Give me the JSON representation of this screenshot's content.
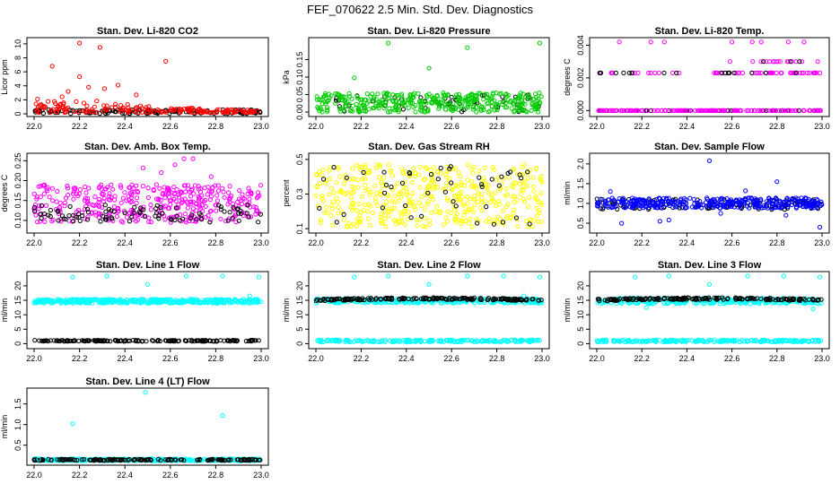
{
  "figure_title": "FEF_070622  2.5 Min. Std. Dev. Diagnostics",
  "colors": {
    "black": "#000000",
    "red": "#ff0000",
    "green": "#00cc00",
    "magenta": "#ff00ff",
    "yellow": "#ffff00",
    "blue": "#0000ff",
    "cyan": "#00ffff"
  },
  "chart_data": [
    {
      "type": "scatter",
      "title": "Stan. Dev. Li-820 CO2",
      "ylabel": "Licor ppm",
      "xlim": [
        22.0,
        23.0
      ],
      "xticks": [
        "22.0",
        "22.2",
        "22.4",
        "22.6",
        "22.8",
        "23.0"
      ],
      "ylim": [
        0,
        10.5
      ],
      "yticks": [
        {
          "v": 0,
          "label": "0"
        },
        {
          "v": 2,
          "label": "2"
        },
        {
          "v": 4,
          "label": "4"
        },
        {
          "v": 6,
          "label": "6"
        },
        {
          "v": 8,
          "label": "8"
        },
        {
          "v": 10,
          "label": "10"
        }
      ],
      "series": [
        {
          "name": "background",
          "color": "black",
          "gen": {
            "mode": "band",
            "n": 130,
            "lo": 0.0,
            "hi": 0.6
          }
        },
        {
          "name": "CO2 std dev",
          "color": "red",
          "gen": {
            "mode": "decay",
            "n": 180,
            "lo": 0.2,
            "hi": 3.2,
            "decay": 2.2
          }
        },
        {
          "name": "CO2 outliers",
          "color": "red",
          "points": [
            [
              22.08,
              6.8
            ],
            [
              22.2,
              10.1
            ],
            [
              22.29,
              9.5
            ],
            [
              22.58,
              7.5
            ],
            [
              22.2,
              5.3
            ],
            [
              22.37,
              4.1
            ],
            [
              22.24,
              3.8
            ],
            [
              22.31,
              3.6
            ],
            [
              22.15,
              3.2
            ],
            [
              22.45,
              2.7
            ]
          ]
        }
      ]
    },
    {
      "type": "scatter",
      "title": "Stan. Dev. Li-820 Pressure",
      "ylabel": "kPa",
      "xlim": [
        22.0,
        23.0
      ],
      "xticks": [
        "22.0",
        "22.2",
        "22.4",
        "22.6",
        "22.8",
        "23.0"
      ],
      "ylim": [
        -0.005,
        0.205
      ],
      "yticks": [
        {
          "v": 0.0,
          "label": "0.00"
        },
        {
          "v": 0.05,
          "label": "0.05"
        },
        {
          "v": 0.1,
          "label": "0.10"
        },
        {
          "v": 0.15,
          "label": "0.15"
        }
      ],
      "series": [
        {
          "name": "background",
          "color": "black",
          "gen": {
            "mode": "band",
            "n": 50,
            "lo": 0.0,
            "hi": 0.05
          }
        },
        {
          "name": "pressure std dev",
          "color": "green",
          "gen": {
            "mode": "band",
            "n": 380,
            "lo": 0.0,
            "hi": 0.055
          }
        },
        {
          "name": "pressure outliers",
          "color": "green",
          "points": [
            [
              22.32,
              0.197
            ],
            [
              22.99,
              0.197
            ],
            [
              22.67,
              0.184
            ],
            [
              22.5,
              0.125
            ],
            [
              22.17,
              0.098
            ]
          ]
        }
      ]
    },
    {
      "type": "scatter",
      "title": "Stan. Dev. Li-820 Temp.",
      "ylabel": "degrees C",
      "xlim": [
        22.0,
        23.0
      ],
      "xticks": [
        "22.0",
        "22.2",
        "22.4",
        "22.6",
        "22.8",
        "23.0"
      ],
      "ylim": [
        -0.0002,
        0.0043
      ],
      "yticks": [
        {
          "v": 0.0,
          "label": "0.000"
        },
        {
          "v": 0.002,
          "label": "0.002"
        },
        {
          "v": 0.004,
          "label": "0.004"
        }
      ],
      "series": [
        {
          "name": "background low",
          "color": "black",
          "gen": {
            "mode": "levels",
            "n": 40,
            "levels": [
              0.0
            ]
          }
        },
        {
          "name": "temp low",
          "color": "magenta",
          "gen": {
            "mode": "levels",
            "n": 150,
            "levels": [
              0.0
            ]
          }
        },
        {
          "name": "temp mid",
          "color": "magenta",
          "gen": {
            "mode": "levels",
            "n": 75,
            "levels": [
              0.0023
            ],
            "gaps": [
              [
                22.38,
                22.5
              ]
            ]
          }
        },
        {
          "name": "background mid",
          "color": "black",
          "gen": {
            "mode": "levels",
            "n": 18,
            "levels": [
              0.0023
            ],
            "gaps": [
              [
                22.38,
                22.5
              ]
            ]
          }
        },
        {
          "name": "temp high",
          "color": "magenta",
          "gen": {
            "mode": "levels",
            "n": 16,
            "levels": [
              0.003
            ],
            "span": [
              22.55,
              22.99
            ]
          }
        },
        {
          "name": "temp top",
          "color": "magenta",
          "points": [
            [
              22.1,
              0.0042
            ],
            [
              22.24,
              0.0042
            ],
            [
              22.3,
              0.0042
            ],
            [
              22.6,
              0.0042
            ],
            [
              22.73,
              0.0042
            ],
            [
              22.85,
              0.0042
            ],
            [
              22.92,
              0.0042
            ],
            [
              22.69,
              0.0042
            ]
          ]
        },
        {
          "name": "background high",
          "color": "black",
          "points": [
            [
              22.74,
              0.003
            ],
            [
              22.86,
              0.003
            ],
            [
              22.9,
              0.003
            ]
          ]
        }
      ]
    },
    {
      "type": "scatter",
      "title": "Stan. Dev. Amb. Box Temp.",
      "ylabel": "degrees C",
      "xlim": [
        22.0,
        23.0
      ],
      "xticks": [
        "22.0",
        "22.2",
        "22.4",
        "22.6",
        "22.8",
        "23.0"
      ],
      "ylim": [
        0.075,
        0.262
      ],
      "yticks": [
        {
          "v": 0.1,
          "label": "0.10"
        },
        {
          "v": 0.15,
          "label": "0.15"
        },
        {
          "v": 0.2,
          "label": "0.20"
        },
        {
          "v": 0.25,
          "label": "0.25"
        }
      ],
      "series": [
        {
          "name": "box temp std dev",
          "color": "magenta",
          "gen": {
            "mode": "band",
            "n": 380,
            "lo": 0.095,
            "hi": 0.19
          }
        },
        {
          "name": "background",
          "color": "black",
          "gen": {
            "mode": "band",
            "n": 90,
            "lo": 0.095,
            "hi": 0.14
          }
        },
        {
          "name": "box temp outliers",
          "color": "magenta",
          "points": [
            [
              22.66,
              0.255
            ],
            [
              22.7,
              0.255
            ],
            [
              22.62,
              0.24
            ],
            [
              22.48,
              0.232
            ],
            [
              22.78,
              0.21
            ],
            [
              22.56,
              0.22
            ],
            [
              22.02,
              0.185
            ],
            [
              22.04,
              0.188
            ]
          ]
        }
      ]
    },
    {
      "type": "scatter",
      "title": "Stan. Dev. Gas Stream RH",
      "ylabel": "percent",
      "xlim": [
        22.0,
        23.0
      ],
      "xticks": [
        "22.0",
        "22.2",
        "22.4",
        "22.6",
        "22.8",
        "23.0"
      ],
      "ylim": [
        0.09,
        0.52
      ],
      "yticks": [
        {
          "v": 0.1,
          "label": "0.1"
        },
        {
          "v": 0.3,
          "label": "0.3"
        },
        {
          "v": 0.5,
          "label": "0.5"
        }
      ],
      "series": [
        {
          "name": "RH std dev",
          "color": "yellow",
          "gen": {
            "mode": "band",
            "n": 460,
            "lo": 0.11,
            "hi": 0.47
          }
        },
        {
          "name": "background",
          "color": "black",
          "gen": {
            "mode": "band",
            "n": 45,
            "lo": 0.12,
            "hi": 0.46
          }
        }
      ]
    },
    {
      "type": "scatter",
      "title": "Stan. Dev. Sample Flow",
      "ylabel": "ml/min",
      "xlim": [
        22.0,
        23.0
      ],
      "xticks": [
        "22.0",
        "22.2",
        "22.4",
        "22.6",
        "22.8",
        "23.0"
      ],
      "ylim": [
        0.32,
        2.2
      ],
      "yticks": [
        {
          "v": 0.5,
          "label": "0.5"
        },
        {
          "v": 1.0,
          "label": "1.0"
        },
        {
          "v": 1.5,
          "label": "1.5"
        },
        {
          "v": 2.0,
          "label": "2.0"
        }
      ],
      "series": [
        {
          "name": "background",
          "color": "black",
          "gen": {
            "mode": "band",
            "n": 110,
            "lo": 0.85,
            "hi": 1.12
          }
        },
        {
          "name": "sample flow std dev",
          "color": "blue",
          "gen": {
            "mode": "band",
            "n": 360,
            "lo": 0.88,
            "hi": 1.14
          }
        },
        {
          "name": "sample flow outliers",
          "color": "blue",
          "points": [
            [
              22.5,
              2.08
            ],
            [
              22.8,
              1.55
            ],
            [
              22.66,
              1.32
            ],
            [
              22.06,
              1.3
            ],
            [
              22.99,
              0.4
            ],
            [
              22.32,
              0.58
            ],
            [
              22.28,
              0.55
            ],
            [
              22.11,
              0.5
            ],
            [
              22.55,
              0.75
            ],
            [
              22.84,
              0.7
            ]
          ]
        }
      ]
    },
    {
      "type": "scatter",
      "title": "Stan. Dev. Line 1 Flow",
      "ylabel": "ml/min",
      "xlim": [
        22.0,
        23.0
      ],
      "xticks": [
        "22.0",
        "22.2",
        "22.4",
        "22.6",
        "22.8",
        "23.0"
      ],
      "ylim": [
        -0.8,
        24
      ],
      "yticks": [
        {
          "v": 0,
          "label": "0"
        },
        {
          "v": 5,
          "label": "5"
        },
        {
          "v": 10,
          "label": "10"
        },
        {
          "v": 15,
          "label": "15"
        },
        {
          "v": 20,
          "label": "20"
        }
      ],
      "series": [
        {
          "name": "line 1 flow",
          "color": "cyan",
          "gen": {
            "mode": "band",
            "n": 400,
            "lo": 14.0,
            "hi": 15.4
          }
        },
        {
          "name": "background",
          "color": "black",
          "gen": {
            "mode": "band",
            "n": 160,
            "lo": 0.8,
            "hi": 1.2
          }
        },
        {
          "name": "line 1 outliers",
          "color": "cyan",
          "points": [
            [
              22.17,
              23
            ],
            [
              22.32,
              23.4
            ],
            [
              22.5,
              20.5
            ],
            [
              22.67,
              23.4
            ],
            [
              22.83,
              23.4
            ],
            [
              22.99,
              23
            ],
            [
              22.95,
              16.5
            ]
          ]
        }
      ]
    },
    {
      "type": "scatter",
      "title": "Stan. Dev. Line 2 Flow",
      "ylabel": "ml/min",
      "xlim": [
        22.0,
        23.0
      ],
      "xticks": [
        "22.0",
        "22.2",
        "22.4",
        "22.6",
        "22.8",
        "23.0"
      ],
      "ylim": [
        -0.8,
        24
      ],
      "yticks": [
        {
          "v": 0,
          "label": "0"
        },
        {
          "v": 5,
          "label": "5"
        },
        {
          "v": 10,
          "label": "10"
        },
        {
          "v": 15,
          "label": "15"
        },
        {
          "v": 20,
          "label": "20"
        }
      ],
      "series": [
        {
          "name": "line 2 flow",
          "color": "cyan",
          "gen": {
            "mode": "band",
            "n": 300,
            "lo": 14.0,
            "hi": 15.6
          }
        },
        {
          "name": "background",
          "color": "black",
          "gen": {
            "mode": "drift",
            "n": 170,
            "lo": 14.4,
            "hi": 15.8
          }
        },
        {
          "name": "line 2 low",
          "color": "cyan",
          "gen": {
            "mode": "band",
            "n": 200,
            "lo": 0.6,
            "hi": 1.3
          }
        },
        {
          "name": "line 2 outliers",
          "color": "cyan",
          "points": [
            [
              22.17,
              23
            ],
            [
              22.32,
              23.4
            ],
            [
              22.5,
              20.5
            ],
            [
              22.67,
              23.4
            ],
            [
              22.83,
              23.4
            ],
            [
              22.99,
              23
            ],
            [
              22.92,
              16.5
            ]
          ]
        }
      ]
    },
    {
      "type": "scatter",
      "title": "Stan. Dev. Line 3 Flow",
      "ylabel": "ml/min",
      "xlim": [
        22.0,
        23.0
      ],
      "xticks": [
        "22.0",
        "22.2",
        "22.4",
        "22.6",
        "22.8",
        "23.0"
      ],
      "ylim": [
        -0.8,
        24
      ],
      "yticks": [
        {
          "v": 0,
          "label": "0"
        },
        {
          "v": 5,
          "label": "5"
        },
        {
          "v": 10,
          "label": "10"
        },
        {
          "v": 15,
          "label": "15"
        },
        {
          "v": 20,
          "label": "20"
        }
      ],
      "series": [
        {
          "name": "line 3 flow",
          "color": "cyan",
          "gen": {
            "mode": "band",
            "n": 300,
            "lo": 13.8,
            "hi": 15.8
          }
        },
        {
          "name": "background",
          "color": "black",
          "gen": {
            "mode": "drift",
            "n": 170,
            "lo": 14.4,
            "hi": 15.8
          }
        },
        {
          "name": "line 3 low",
          "color": "cyan",
          "gen": {
            "mode": "band",
            "n": 200,
            "lo": 0.6,
            "hi": 1.3
          }
        },
        {
          "name": "line 3 outliers",
          "color": "cyan",
          "points": [
            [
              22.17,
              23
            ],
            [
              22.32,
              23.4
            ],
            [
              22.5,
              20.5
            ],
            [
              22.67,
              23.4
            ],
            [
              22.83,
              23.4
            ],
            [
              22.99,
              23
            ],
            [
              22.22,
              12.5
            ],
            [
              22.96,
              12
            ]
          ]
        }
      ]
    },
    {
      "type": "scatter",
      "title": "Stan. Dev. Line 4 (LT) Flow",
      "ylabel": "ml/min",
      "xlim": [
        22.0,
        23.0
      ],
      "xticks": [
        "22.0",
        "22.2",
        "22.4",
        "22.6",
        "22.8",
        "23.0"
      ],
      "ylim": [
        0.08,
        1.82
      ],
      "yticks": [
        {
          "v": 0.5,
          "label": "0.5"
        },
        {
          "v": 1.0,
          "label": "1.0"
        },
        {
          "v": 1.5,
          "label": "1.5"
        }
      ],
      "series": [
        {
          "name": "line 4 flow",
          "color": "cyan",
          "gen": {
            "mode": "band",
            "n": 360,
            "lo": 0.12,
            "hi": 0.17
          }
        },
        {
          "name": "background",
          "color": "black",
          "gen": {
            "mode": "band",
            "n": 170,
            "lo": 0.13,
            "hi": 0.16
          }
        },
        {
          "name": "line 4 outliers",
          "color": "cyan",
          "points": [
            [
              22.49,
              1.78
            ],
            [
              22.83,
              1.22
            ],
            [
              22.17,
              1.02
            ],
            [
              22.02,
              0.16
            ]
          ]
        }
      ]
    }
  ]
}
